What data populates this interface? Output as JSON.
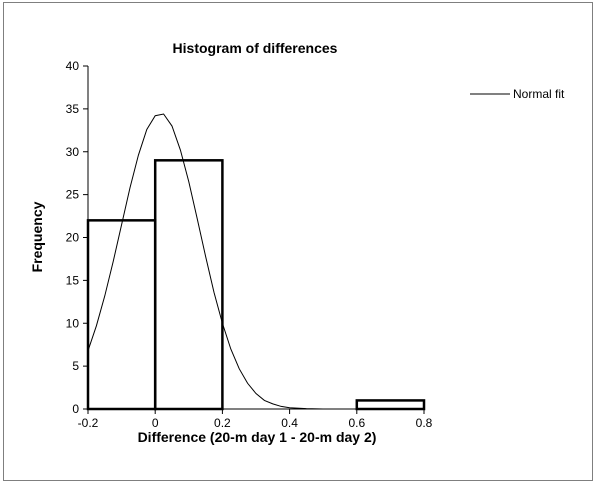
{
  "chart_data": {
    "type": "bar",
    "title": "Histogram of differences",
    "xlabel": "Difference (20-m day 1 - 20-m day 2)",
    "ylabel": "Frequency",
    "xlim": [
      -0.2,
      0.8
    ],
    "ylim": [
      0,
      40
    ],
    "x_ticks": [
      "-0.2",
      "0",
      "0.2",
      "0.4",
      "0.6",
      "0.8"
    ],
    "y_ticks": [
      "0",
      "5",
      "10",
      "15",
      "20",
      "25",
      "30",
      "35",
      "40"
    ],
    "grid": false,
    "legend_position": "top-right",
    "bins": [
      {
        "x0": -0.2,
        "x1": 0.0,
        "count": 22
      },
      {
        "x0": 0.0,
        "x1": 0.2,
        "count": 29
      },
      {
        "x0": 0.2,
        "x1": 0.4,
        "count": 0
      },
      {
        "x0": 0.4,
        "x1": 0.6,
        "count": 0
      },
      {
        "x0": 0.6,
        "x1": 0.8,
        "count": 1
      }
    ],
    "series": [
      {
        "name": "Normal fit",
        "type": "line",
        "x": [
          -0.2,
          -0.175,
          -0.15,
          -0.125,
          -0.1,
          -0.075,
          -0.05,
          -0.025,
          0.0,
          0.025,
          0.05,
          0.075,
          0.1,
          0.125,
          0.15,
          0.175,
          0.2,
          0.225,
          0.25,
          0.275,
          0.3,
          0.325,
          0.35,
          0.375,
          0.4,
          0.45,
          0.5,
          0.6,
          0.7,
          0.8
        ],
        "y": [
          6.8,
          9.7,
          13.2,
          17.2,
          21.5,
          25.8,
          29.6,
          32.6,
          34.2,
          34.4,
          33.0,
          30.2,
          26.5,
          22.2,
          17.8,
          13.6,
          10.0,
          7.0,
          4.7,
          3.0,
          1.8,
          1.0,
          0.6,
          0.3,
          0.15,
          0.05,
          0.0,
          0.0,
          0.0,
          0.0
        ]
      }
    ]
  }
}
